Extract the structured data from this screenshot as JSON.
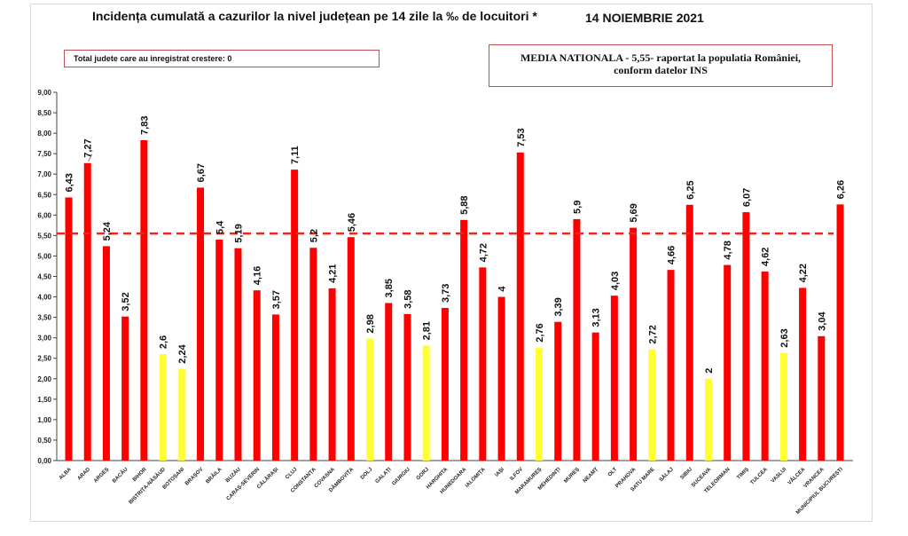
{
  "header": {
    "title": "Incidența cumulată a cazurilor la nivel județean pe 14 zile la ‰ de locuitori *",
    "date": "14 NOIEMBRIE 2021"
  },
  "notes": {
    "left_box": "Total judete care au inregistrat crestere: 0",
    "right_box_line1": "MEDIA NATIONALA - 5,55-  raportat la populatia României,",
    "right_box_line2": "conform datelor INS"
  },
  "colors": {
    "bar_red": "#ff0000",
    "bar_yellow": "#ffff33",
    "reference_line": "#e8281c",
    "axis": "#444444"
  },
  "chart_data": {
    "type": "bar",
    "title": "Incidența cumulată a cazurilor la nivel județean pe 14 zile la ‰ de locuitori *",
    "xlabel": "",
    "ylabel": "",
    "ylim": [
      0,
      9
    ],
    "yticks": [
      "0,00",
      "0,50",
      "1,00",
      "1,50",
      "2,00",
      "2,50",
      "3,00",
      "3,50",
      "4,00",
      "4,50",
      "5,00",
      "5,50",
      "6,00",
      "6,50",
      "7,00",
      "7,50",
      "8,00",
      "8,50",
      "9,00"
    ],
    "grid": false,
    "reference_line": 5.55,
    "categories": [
      "ALBA",
      "ARAD",
      "ARGEȘ",
      "BACĂU",
      "BIHOR",
      "BISTRIȚA-NĂSĂUD",
      "BOTOȘANI",
      "BRAȘOV",
      "BRĂILA",
      "BUZĂU",
      "CARAȘ-SEVERIN",
      "CĂLĂRAȘI",
      "CLUJ",
      "CONSTANȚA",
      "COVASNA",
      "DÂMBOVIȚA",
      "DOLJ",
      "GALAȚI",
      "GIURGIU",
      "GORJ",
      "HARGHITA",
      "HUNEDOARA",
      "IALOMIȚA",
      "IAȘI",
      "ILFOV",
      "MARAMUREȘ",
      "MEHEDINȚI",
      "MUREȘ",
      "NEAMȚ",
      "OLT",
      "PRAHOVA",
      "SATU MARE",
      "SĂLAJ",
      "SIBIU",
      "SUCEAVA",
      "TELEORMAN",
      "TIMIȘ",
      "TULCEA",
      "VASLUI",
      "VÂLCEA",
      "VRANCEA",
      "MUNICIPIUL BUCUREȘTI"
    ],
    "values": [
      6.43,
      7.27,
      5.24,
      3.52,
      7.83,
      2.6,
      2.24,
      6.67,
      5.4,
      5.19,
      4.16,
      3.57,
      7.11,
      5.2,
      4.21,
      5.46,
      2.98,
      3.85,
      3.58,
      2.81,
      3.73,
      5.88,
      4.72,
      4,
      7.53,
      2.76,
      3.39,
      5.9,
      3.13,
      4.03,
      5.69,
      2.72,
      4.66,
      6.25,
      2,
      4.78,
      6.07,
      4.62,
      2.63,
      4.22,
      3.04,
      6.26
    ],
    "labels": [
      "6,43",
      "7,27",
      "5,24",
      "3,52",
      "7,83",
      "2,6",
      "2,24",
      "6,67",
      "5,4",
      "5,19",
      "4,16",
      "3,57",
      "7,11",
      "5,2",
      "4,21",
      "5,46",
      "2,98",
      "3,85",
      "3,58",
      "2,81",
      "3,73",
      "5,88",
      "4,72",
      "4",
      "7,53",
      "2,76",
      "3,39",
      "5,9",
      "3,13",
      "4,03",
      "5,69",
      "2,72",
      "4,66",
      "6,25",
      "2",
      "4,78",
      "6,07",
      "4,62",
      "2,63",
      "4,22",
      "3,04",
      "6,26"
    ],
    "highlight": [
      "red",
      "red",
      "red",
      "red",
      "red",
      "yellow",
      "yellow",
      "red",
      "red",
      "red",
      "red",
      "red",
      "red",
      "red",
      "red",
      "red",
      "yellow",
      "red",
      "red",
      "yellow",
      "red",
      "red",
      "red",
      "red",
      "red",
      "yellow",
      "red",
      "red",
      "red",
      "red",
      "red",
      "yellow",
      "red",
      "red",
      "yellow",
      "red",
      "red",
      "red",
      "yellow",
      "red",
      "red",
      "red"
    ]
  }
}
